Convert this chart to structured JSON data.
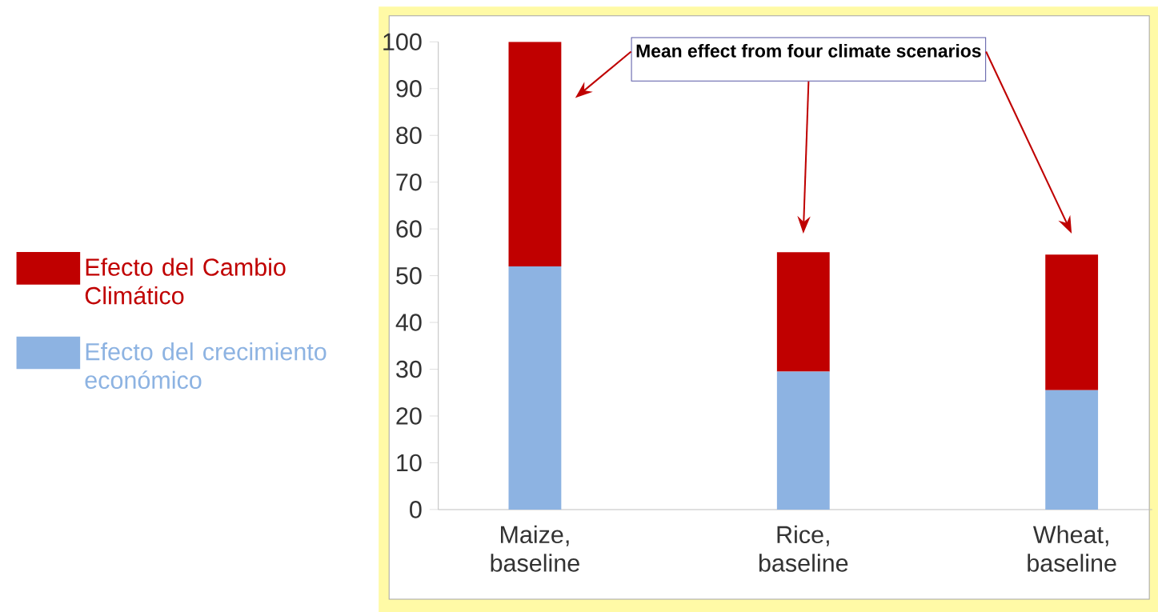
{
  "chart_data": {
    "type": "bar",
    "stacked": true,
    "categories": [
      "Maize, baseline",
      "Rice, baseline",
      "Wheat, baseline"
    ],
    "series": [
      {
        "name": "Efecto del  crecimiento económico",
        "color": "#8db3e2",
        "values": [
          52,
          29.5,
          25.5
        ]
      },
      {
        "name": "Efecto del Cambio Climático",
        "color": "#c00000",
        "values": [
          48,
          25.5,
          29
        ]
      }
    ],
    "ylim": [
      0,
      100
    ],
    "yticks": [
      0,
      10,
      20,
      30,
      40,
      50,
      60,
      70,
      80,
      90,
      100
    ],
    "legend": "left",
    "grid": false,
    "annotations": [
      "Mean effect from four climate scenarios"
    ]
  }
}
